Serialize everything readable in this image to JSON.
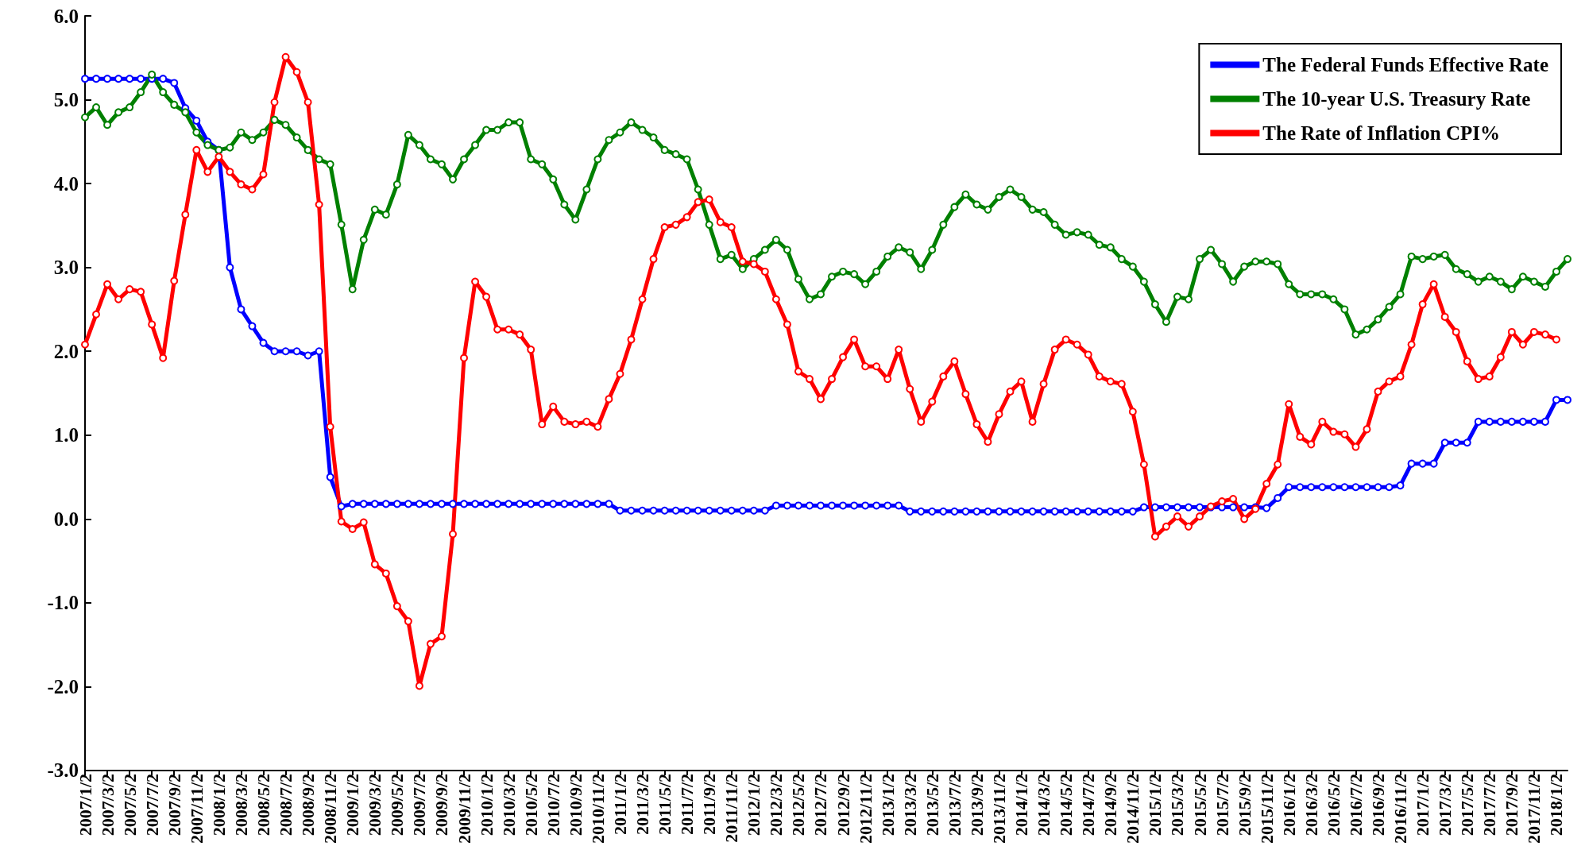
{
  "chart_data": {
    "type": "line",
    "categories": [
      "2007/1/2",
      null,
      "2007/3/2",
      null,
      "2007/5/2",
      null,
      "2007/7/2",
      null,
      "2007/9/2",
      null,
      "2007/11/2",
      null,
      "2008/1/2",
      null,
      "2008/3/2",
      null,
      "2008/5/2",
      null,
      "2008/7/2",
      null,
      "2008/9/2",
      null,
      "2008/11/2",
      null,
      "2009/1/2",
      null,
      "2009/3/2",
      null,
      "2009/5/2",
      null,
      "2009/7/2",
      null,
      "2009/9/2",
      null,
      "2009/11/2",
      null,
      "2010/1/2",
      null,
      "2010/3/2",
      null,
      "2010/5/2",
      null,
      "2010/7/2",
      null,
      "2010/9/2",
      null,
      "2010/11/2",
      null,
      "2011/1/2",
      null,
      "2011/3/2",
      null,
      "2011/5/2",
      null,
      "2011/7/2",
      null,
      "2011/9/2",
      null,
      "2011/11/2",
      null,
      "2012/1/2",
      null,
      "2012/3/2",
      null,
      "2012/5/2",
      null,
      "2012/7/2",
      null,
      "2012/9/2",
      null,
      "2012/11/2",
      null,
      "2013/1/2",
      null,
      "2013/3/2",
      null,
      "2013/5/2",
      null,
      "2013/7/2",
      null,
      "2013/9/2",
      null,
      "2013/11/2",
      null,
      "2014/1/2",
      null,
      "2014/3/2",
      null,
      "2014/5/2",
      null,
      "2014/7/2",
      null,
      "2014/9/2",
      null,
      "2014/11/2",
      null,
      "2015/1/2",
      null,
      "2015/3/2",
      null,
      "2015/5/2",
      null,
      "2015/7/2",
      null,
      "2015/9/2",
      null,
      "2015/11/2",
      null,
      "2016/1/2",
      null,
      "2016/3/2",
      null,
      "2016/5/2",
      null,
      "2016/7/2",
      null,
      "2016/9/2",
      null,
      "2016/11/2",
      null,
      "2017/1/2",
      null,
      "2017/3/2",
      null,
      "2017/5/2",
      null,
      "2017/7/2",
      null,
      "2017/9/2",
      null,
      "2017/11/2",
      null,
      "2018/1/2",
      null
    ],
    "series": [
      {
        "name": "The Federal Funds Effective Rate",
        "color": "#0000ff",
        "values": [
          5.25,
          5.25,
          5.25,
          5.25,
          5.25,
          5.25,
          5.25,
          5.25,
          5.2,
          4.9,
          4.75,
          4.5,
          4.4,
          3.0,
          2.5,
          2.3,
          2.1,
          2.0,
          2.0,
          2.0,
          1.95,
          2.0,
          0.5,
          0.15,
          0.18,
          0.18,
          0.18,
          0.18,
          0.18,
          0.18,
          0.18,
          0.18,
          0.18,
          0.18,
          0.18,
          0.18,
          0.18,
          0.18,
          0.18,
          0.18,
          0.18,
          0.18,
          0.18,
          0.18,
          0.18,
          0.18,
          0.18,
          0.18,
          0.1,
          0.1,
          0.1,
          0.1,
          0.1,
          0.1,
          0.1,
          0.1,
          0.1,
          0.1,
          0.1,
          0.1,
          0.1,
          0.1,
          0.16,
          0.16,
          0.16,
          0.16,
          0.16,
          0.16,
          0.16,
          0.16,
          0.16,
          0.16,
          0.16,
          0.16,
          0.09,
          0.09,
          0.09,
          0.09,
          0.09,
          0.09,
          0.09,
          0.09,
          0.09,
          0.09,
          0.09,
          0.09,
          0.09,
          0.09,
          0.09,
          0.09,
          0.09,
          0.09,
          0.09,
          0.09,
          0.09,
          0.14,
          0.14,
          0.14,
          0.14,
          0.14,
          0.14,
          0.14,
          0.14,
          0.14,
          0.14,
          0.14,
          0.13,
          0.25,
          0.38,
          0.38,
          0.38,
          0.38,
          0.38,
          0.38,
          0.38,
          0.38,
          0.38,
          0.38,
          0.4,
          0.66,
          0.66,
          0.66,
          0.91,
          0.91,
          0.91,
          1.16,
          1.16,
          1.16,
          1.16,
          1.16,
          1.16,
          1.16,
          1.42,
          1.42
        ]
      },
      {
        "name": "The 10-year U.S. Treasury Rate",
        "color": "#008000",
        "values": [
          4.79,
          4.91,
          4.7,
          4.85,
          4.91,
          5.09,
          5.3,
          5.09,
          4.94,
          4.85,
          4.61,
          4.46,
          4.4,
          4.43,
          4.61,
          4.52,
          4.61,
          4.76,
          4.7,
          4.55,
          4.4,
          4.29,
          4.23,
          3.51,
          2.74,
          3.33,
          3.69,
          3.63,
          3.99,
          4.58,
          4.46,
          4.29,
          4.23,
          4.05,
          4.29,
          4.46,
          4.64,
          4.64,
          4.73,
          4.73,
          4.29,
          4.23,
          4.05,
          3.75,
          3.57,
          3.93,
          4.29,
          4.52,
          4.61,
          4.73,
          4.64,
          4.55,
          4.4,
          4.35,
          4.29,
          3.93,
          3.51,
          3.1,
          3.15,
          2.98,
          3.1,
          3.21,
          3.33,
          3.21,
          2.86,
          2.62,
          2.68,
          2.89,
          2.95,
          2.92,
          2.8,
          2.95,
          3.13,
          3.24,
          3.18,
          2.98,
          3.21,
          3.51,
          3.72,
          3.87,
          3.75,
          3.69,
          3.84,
          3.93,
          3.84,
          3.69,
          3.66,
          3.51,
          3.39,
          3.42,
          3.39,
          3.27,
          3.24,
          3.1,
          3.01,
          2.83,
          2.56,
          2.35,
          2.65,
          2.62,
          3.1,
          3.21,
          3.04,
          2.83,
          3.01,
          3.07,
          3.07,
          3.04,
          2.8,
          2.68,
          2.68,
          2.68,
          2.62,
          2.5,
          2.2,
          2.26,
          2.38,
          2.53,
          2.68,
          3.13,
          3.1,
          3.13,
          3.15,
          2.98,
          2.92,
          2.83,
          2.89,
          2.83,
          2.74,
          2.89,
          2.83,
          2.77,
          2.95,
          3.1
        ]
      },
      {
        "name": "The Rate of Inflation CPI%",
        "color": "#ff0000",
        "values": [
          2.08,
          2.44,
          2.8,
          2.62,
          2.74,
          2.71,
          2.32,
          1.92,
          2.84,
          3.63,
          4.4,
          4.14,
          4.32,
          4.14,
          3.99,
          3.93,
          4.11,
          4.97,
          5.51,
          5.33,
          4.97,
          3.75,
          1.1,
          -0.03,
          -0.12,
          -0.04,
          -0.54,
          -0.65,
          -1.04,
          -1.22,
          -1.99,
          -1.49,
          -1.4,
          -0.18,
          1.92,
          2.83,
          2.65,
          2.26,
          2.26,
          2.2,
          2.02,
          1.13,
          1.34,
          1.16,
          1.13,
          1.16,
          1.1,
          1.43,
          1.73,
          2.14,
          2.62,
          3.1,
          3.48,
          3.51,
          3.6,
          3.78,
          3.81,
          3.54,
          3.48,
          3.07,
          3.04,
          2.95,
          2.62,
          2.32,
          1.76,
          1.67,
          1.43,
          1.67,
          1.93,
          2.14,
          1.82,
          1.82,
          1.67,
          2.02,
          1.55,
          1.16,
          1.4,
          1.7,
          1.88,
          1.49,
          1.13,
          0.92,
          1.25,
          1.52,
          1.64,
          1.16,
          1.61,
          2.02,
          2.14,
          2.08,
          1.96,
          1.7,
          1.64,
          1.61,
          1.28,
          0.65,
          -0.21,
          -0.09,
          0.03,
          -0.09,
          0.03,
          0.15,
          0.21,
          0.24,
          0.0,
          0.12,
          0.42,
          0.65,
          1.37,
          0.98,
          0.89,
          1.16,
          1.04,
          1.01,
          0.86,
          1.07,
          1.52,
          1.64,
          1.7,
          2.08,
          2.56,
          2.8,
          2.41,
          2.23,
          1.88,
          1.67,
          1.7,
          1.93,
          2.23,
          2.08,
          2.23,
          2.2,
          2.14,
          null
        ]
      }
    ],
    "ylim": [
      -3,
      6
    ],
    "yticks": [
      {
        "value": -3,
        "label": "-3.0"
      },
      {
        "value": -2,
        "label": "-2.0"
      },
      {
        "value": -1,
        "label": "-1.0"
      },
      {
        "value": 0,
        "label": "0.0"
      },
      {
        "value": 1,
        "label": "1.0"
      },
      {
        "value": 2,
        "label": "2.0"
      },
      {
        "value": 3,
        "label": "3.0"
      },
      {
        "value": 4,
        "label": "4.0"
      },
      {
        "value": 5,
        "label": "5.0"
      },
      {
        "value": 6,
        "label": "6.0"
      }
    ],
    "legend": "top right",
    "marker": "circle",
    "line_style": "solid"
  }
}
